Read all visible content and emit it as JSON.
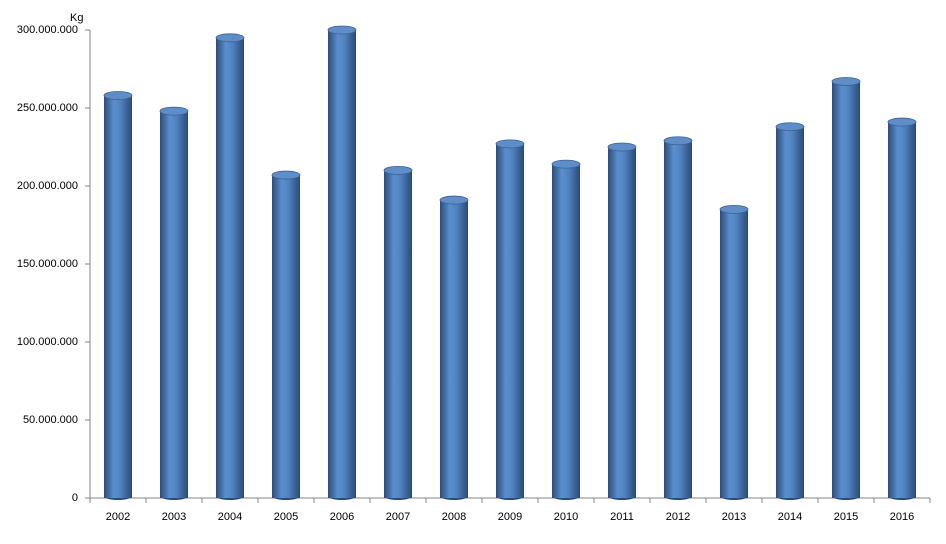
{
  "chart_data": {
    "type": "bar",
    "y_label": "Kg",
    "categories": [
      "2002",
      "2003",
      "2004",
      "2005",
      "2006",
      "2007",
      "2008",
      "2009",
      "2010",
      "2011",
      "2012",
      "2013",
      "2014",
      "2015",
      "2016"
    ],
    "values": [
      258000000,
      248000000,
      295000000,
      207000000,
      300000000,
      210000000,
      191000000,
      227000000,
      214000000,
      225000000,
      229000000,
      185000000,
      238000000,
      267000000,
      241000000
    ],
    "color": "#4f81bd",
    "ylim": [
      0,
      300000000
    ],
    "yticks": [
      0,
      {
        "value": 50000000,
        "label": "50.000.000"
      },
      {
        "value": 100000000,
        "label": "100.000.000"
      },
      {
        "value": 150000000,
        "label": "150.000.000"
      },
      {
        "value": 200000000,
        "label": "200.000.000"
      },
      {
        "value": 250000000,
        "label": "250.000.000"
      },
      {
        "value": 300000000,
        "label": "300.000.000"
      }
    ],
    "grid": false
  }
}
